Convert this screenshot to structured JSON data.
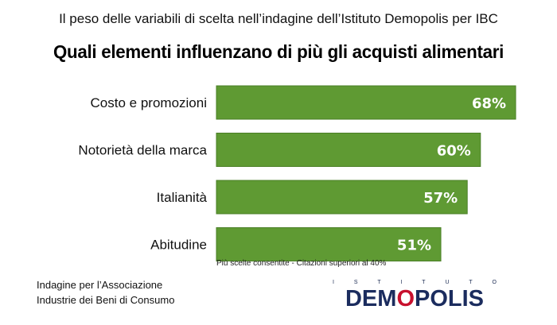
{
  "subtitle": "Il peso delle variabili di scelta nell’indagine dell’Istituto Demopolis per IBC",
  "title": "Quali elementi influenzano di più gli acquisti alimentari",
  "note": "Più scelte consentite - Citazioni superiori al 40%",
  "footer": {
    "line1": "Indagine per l’Associazione",
    "line2": "Industrie dei Beni di Consumo"
  },
  "logo": {
    "top_letters": [
      "I",
      "S",
      "T",
      "I",
      "T",
      "U",
      "T",
      "O"
    ],
    "name_before": "DEM",
    "name_accent": "O",
    "name_after": "POLIS"
  },
  "colors": {
    "bar": "#5f9a33",
    "bar_border": "#4a7f26",
    "value_label": "#ffffff"
  },
  "chart_data": {
    "type": "bar",
    "orientation": "horizontal",
    "categories": [
      "Costo e promozioni",
      "Notorietà della marca",
      "Italianità",
      "Abitudine"
    ],
    "values": [
      68,
      60,
      57,
      51
    ],
    "value_labels": [
      "68%",
      "60%",
      "57%",
      "51%"
    ],
    "unit": "%",
    "xlim": [
      0,
      100
    ],
    "grid": false,
    "legend": "none"
  }
}
